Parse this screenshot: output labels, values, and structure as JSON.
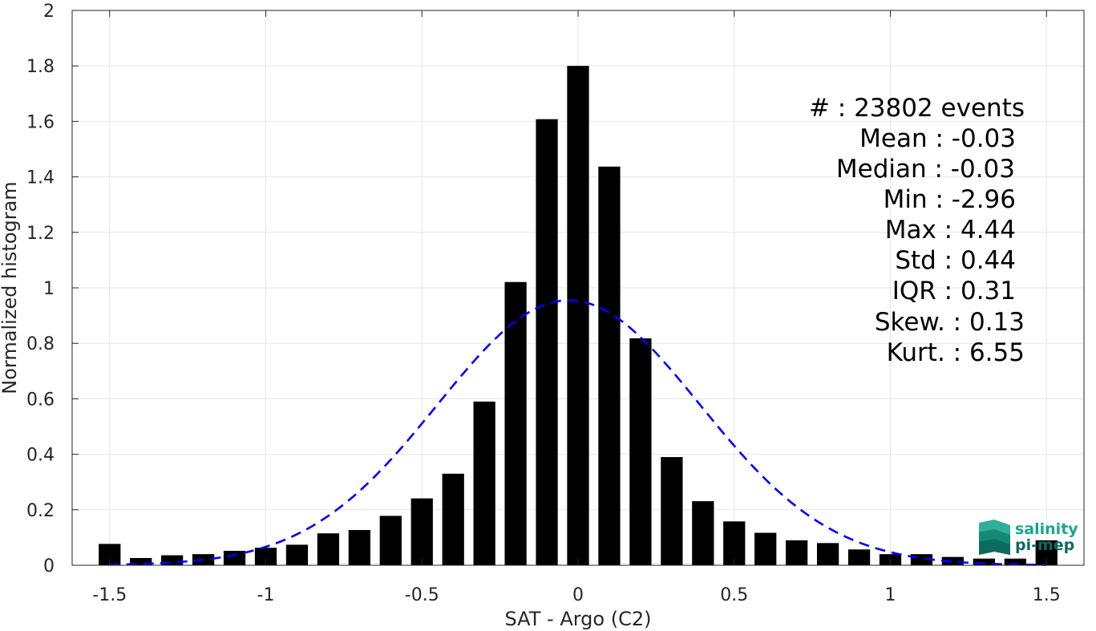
{
  "chart_data": {
    "type": "bar",
    "xlabel": "SAT - Argo (C2)",
    "ylabel": "Normalized histogram",
    "xlim": [
      -1.62,
      1.62
    ],
    "ylim": [
      0,
      2
    ],
    "xticks": [
      -1.5,
      -1,
      -0.5,
      0,
      0.5,
      1,
      1.5
    ],
    "xtick_labels": [
      "-1.5",
      "-1",
      "-0.5",
      "0",
      "0.5",
      "1",
      "1.5"
    ],
    "yticks": [
      0,
      0.2,
      0.4,
      0.6,
      0.8,
      1,
      1.2,
      1.4,
      1.6,
      1.8,
      2
    ],
    "ytick_labels": [
      "0",
      "0.2",
      "0.4",
      "0.6",
      "0.8",
      "1",
      "1.2",
      "1.4",
      "1.6",
      "1.8",
      "2"
    ],
    "grid": true,
    "bar_width": 0.07,
    "x": [
      -1.5,
      -1.4,
      -1.3,
      -1.2,
      -1.1,
      -1.0,
      -0.9,
      -0.8,
      -0.7,
      -0.6,
      -0.5,
      -0.4,
      -0.3,
      -0.2,
      -0.1,
      0.0,
      0.1,
      0.2,
      0.3,
      0.4,
      0.5,
      0.6,
      0.7,
      0.8,
      0.9,
      1.0,
      1.1,
      1.2,
      1.3,
      1.4,
      1.5
    ],
    "values": [
      0.077,
      0.026,
      0.036,
      0.04,
      0.052,
      0.063,
      0.074,
      0.115,
      0.127,
      0.178,
      0.241,
      0.33,
      0.59,
      1.021,
      1.608,
      1.8,
      1.437,
      0.818,
      0.39,
      0.231,
      0.158,
      0.117,
      0.09,
      0.08,
      0.057,
      0.04,
      0.04,
      0.03,
      0.024,
      0.024,
      0.09
    ],
    "bar_color": "#000000",
    "fit": {
      "type": "normal",
      "mean": -0.03,
      "std": 0.42,
      "peak": 0.955,
      "style": "dashed",
      "color": "#0000ff"
    },
    "annotations": [
      "#  : 23802 events",
      "Mean : -0.03",
      "Median : -0.03",
      "Min : -2.96",
      "Max : 4.44",
      "Std : 0.44",
      "IQR : 0.31",
      "Skew. : 0.13",
      "Kurt. : 6.55"
    ]
  },
  "logo": {
    "line1": "salinity",
    "line2": "pi-mep",
    "colors": {
      "teal": "#1aa58c",
      "dark": "#0d6b5e"
    }
  },
  "colors": {
    "grid": "#e6e6e6",
    "axis": "#262626"
  }
}
